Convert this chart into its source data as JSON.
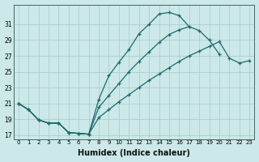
{
  "xlabel": "Humidex (Indice chaleur)",
  "bg_color": "#cce8e8",
  "grid_color": "#aacfcf",
  "line_color": "#1a6b6b",
  "xlim": [
    -0.5,
    23.5
  ],
  "ylim": [
    16.5,
    33.5
  ],
  "yticks": [
    17,
    19,
    21,
    23,
    25,
    27,
    29,
    31
  ],
  "xticks": [
    0,
    1,
    2,
    3,
    4,
    5,
    6,
    7,
    8,
    9,
    10,
    11,
    12,
    13,
    14,
    15,
    16,
    17,
    18,
    19,
    20,
    21,
    22,
    23
  ],
  "line1_x": [
    0,
    1,
    2,
    3,
    4,
    5,
    6,
    7,
    8,
    9,
    10,
    11,
    12,
    13,
    14,
    15,
    16,
    17
  ],
  "line1_y": [
    21.0,
    20.2,
    18.9,
    18.5,
    18.5,
    17.3,
    17.2,
    17.1,
    21.5,
    24.5,
    26.2,
    27.8,
    29.8,
    31.0,
    32.3,
    32.5,
    32.1,
    30.7
  ],
  "line2_x": [
    0,
    1,
    2,
    3,
    4,
    5,
    6,
    7,
    8,
    9,
    10,
    11,
    12,
    13,
    14,
    15,
    16,
    17,
    18,
    19,
    20
  ],
  "line2_y": [
    21.0,
    20.2,
    18.9,
    18.5,
    18.5,
    17.3,
    17.2,
    17.1,
    20.5,
    22.0,
    23.5,
    25.0,
    26.3,
    27.5,
    28.7,
    29.7,
    30.3,
    30.7,
    30.2,
    29.0,
    27.2
  ],
  "line3_x": [
    0,
    1,
    2,
    3,
    4,
    5,
    6,
    7,
    8,
    9,
    10,
    11,
    12,
    13,
    14,
    15,
    16,
    17,
    18,
    19,
    20,
    21,
    22,
    23
  ],
  "line3_y": [
    21.0,
    20.2,
    18.9,
    18.5,
    18.5,
    17.3,
    17.2,
    17.1,
    19.2,
    20.2,
    21.2,
    22.1,
    23.0,
    23.9,
    24.7,
    25.5,
    26.3,
    27.0,
    27.6,
    28.2,
    28.8,
    26.7,
    26.1,
    26.4
  ],
  "xlabel_fontsize": 7,
  "tick_fontsize": 5,
  "linewidth": 0.9,
  "markersize": 3.5
}
